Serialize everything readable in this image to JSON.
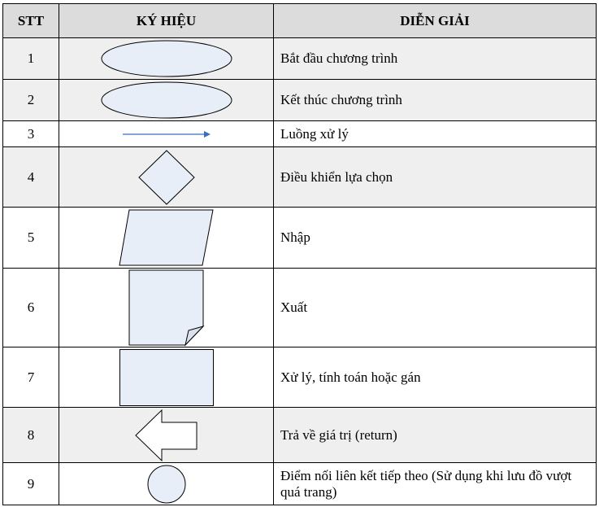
{
  "headers": {
    "stt": "STT",
    "symbol": "KÝ HIỆU",
    "explanation": "DIỄN GIẢI"
  },
  "colors": {
    "shape_fill": "#e8eef8",
    "arrow": "#3a6ec0",
    "header_bg": "#dcdcdc",
    "row_shade": "#efefef"
  },
  "rows": [
    {
      "stt": "1",
      "symbol": "terminal-start-ellipse",
      "desc": "Bắt đầu chương trình"
    },
    {
      "stt": "2",
      "symbol": "terminal-end-ellipse",
      "desc": "Kết thúc chương trình"
    },
    {
      "stt": "3",
      "symbol": "flow-arrow",
      "desc": "Luồng xử lý"
    },
    {
      "stt": "4",
      "symbol": "decision-diamond",
      "desc": "Điều khiển lựa chọn"
    },
    {
      "stt": "5",
      "symbol": "input-parallelogram",
      "desc": "Nhập"
    },
    {
      "stt": "6",
      "symbol": "output-document",
      "desc": "Xuất"
    },
    {
      "stt": "7",
      "symbol": "process-rectangle",
      "desc": "Xử lý, tính toán hoặc gán"
    },
    {
      "stt": "8",
      "symbol": "return-arrow",
      "desc": "Trả về giá trị (return)"
    },
    {
      "stt": "9",
      "symbol": "connector-circle",
      "desc": "Điểm nối liên kết tiếp theo (Sử dụng khi lưu đồ vượt quá trang)"
    }
  ]
}
